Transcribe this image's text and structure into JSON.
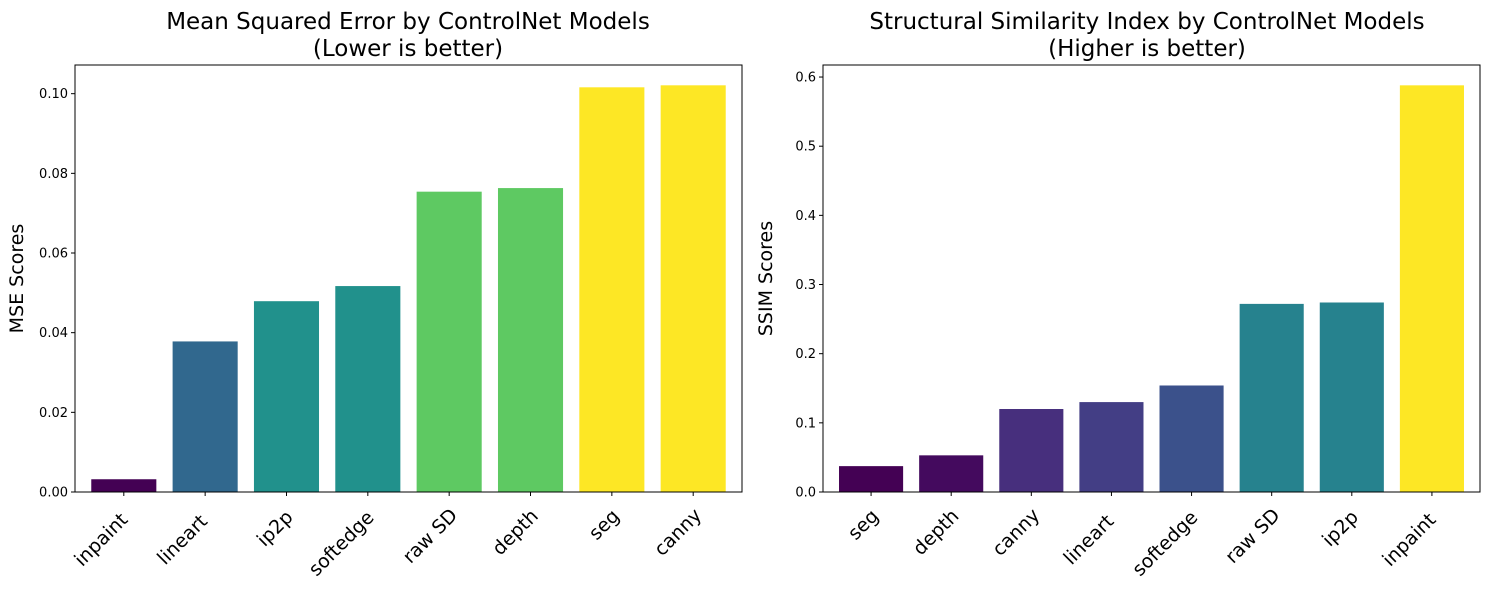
{
  "chart_data": [
    {
      "type": "bar",
      "title_line1": "Mean Squared Error by ControlNet Models",
      "title_line2": "(Lower is better)",
      "xlabel": "",
      "ylabel": "MSE Scores",
      "categories": [
        "inpaint",
        "lineart",
        "ip2p",
        "softedge",
        "raw SD",
        "depth",
        "seg",
        "canny"
      ],
      "values": [
        0.0032,
        0.0378,
        0.0479,
        0.0517,
        0.0754,
        0.0763,
        0.1016,
        0.1021
      ],
      "colors": [
        "#440154",
        "#31688e",
        "#21918c",
        "#21918c",
        "#5ec962",
        "#5ec962",
        "#fde725",
        "#fde725"
      ],
      "yticks": [
        0.0,
        0.02,
        0.04,
        0.06,
        0.08,
        0.1
      ],
      "ytick_labels": [
        "0.00",
        "0.02",
        "0.04",
        "0.06",
        "0.08",
        "0.10"
      ],
      "ylim": [
        0,
        0.1072
      ],
      "grid": false,
      "legend": "none"
    },
    {
      "type": "bar",
      "title_line1": "Structural Similarity Index by ControlNet Models",
      "title_line2": "(Higher is better)",
      "xlabel": "",
      "ylabel": "SSIM Scores",
      "categories": [
        "seg",
        "depth",
        "canny",
        "lineart",
        "softedge",
        "raw SD",
        "ip2p",
        "inpaint"
      ],
      "values": [
        0.0374,
        0.053,
        0.12,
        0.13,
        0.154,
        0.272,
        0.274,
        0.588
      ],
      "colors": [
        "#440154",
        "#440a5e",
        "#472f7d",
        "#433e85",
        "#3b518b",
        "#26828e",
        "#26828e",
        "#fde725"
      ],
      "yticks": [
        0.0,
        0.1,
        0.2,
        0.3,
        0.4,
        0.5,
        0.6
      ],
      "ytick_labels": [
        "0.0",
        "0.1",
        "0.2",
        "0.3",
        "0.4",
        "0.5",
        "0.6"
      ],
      "ylim": [
        0,
        0.6174
      ],
      "grid": false,
      "legend": "none"
    }
  ]
}
